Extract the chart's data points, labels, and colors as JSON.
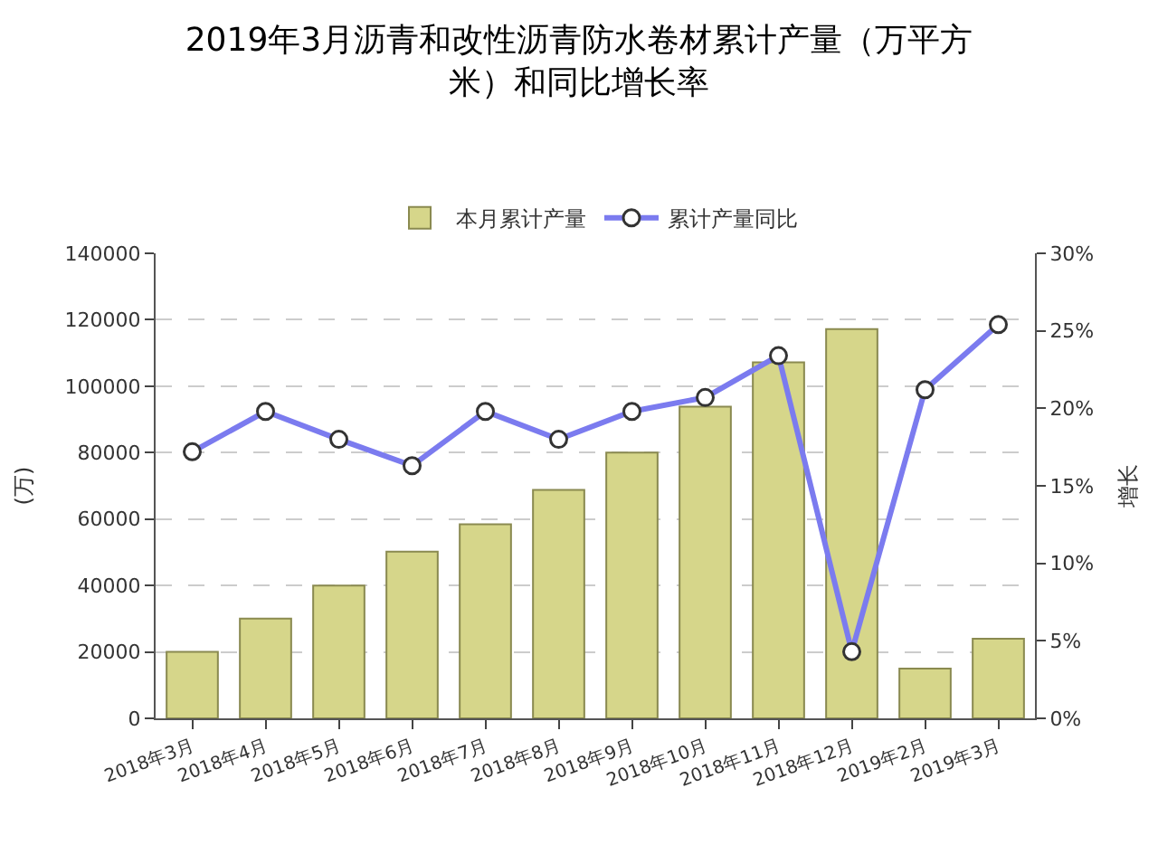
{
  "chart_data": {
    "type": "bar",
    "title": "2019年3月沥青和改性沥青防水卷材累计产量（万平方米）和同比增长率",
    "categories": [
      "2018年3月",
      "2018年4月",
      "2018年5月",
      "2018年6月",
      "2018年7月",
      "2018年8月",
      "2018年9月",
      "2018年10月",
      "2018年11月",
      "2018年12月",
      "2019年2月",
      "2019年3月"
    ],
    "series": [
      {
        "name": "本月累计产量",
        "color": "#d6d68a",
        "values": [
          20000,
          30000,
          40000,
          50200,
          58400,
          68800,
          80000,
          93800,
          107200,
          117200,
          15000,
          24000
        ]
      },
      {
        "name": "累计产量同比",
        "type": "line",
        "axis": "y2",
        "color": "#7b7bef",
        "values": [
          17.2,
          19.8,
          18.0,
          16.3,
          19.8,
          18.0,
          19.8,
          20.7,
          23.4,
          4.3,
          21.2,
          25.4
        ]
      }
    ],
    "ylabel": "(万)",
    "y2label": "增长",
    "ylim": [
      0,
      140000
    ],
    "yticks": [
      0,
      20000,
      40000,
      60000,
      80000,
      100000,
      120000,
      140000
    ],
    "y2lim": [
      0,
      30
    ],
    "y2ticks": [
      {
        "value": 0,
        "label": "0%"
      },
      {
        "value": 5,
        "label": "5%"
      },
      {
        "value": 10,
        "label": "10%"
      },
      {
        "value": 15,
        "label": "15%"
      },
      {
        "value": 20,
        "label": "20%"
      },
      {
        "value": 25,
        "label": "25%"
      },
      {
        "value": 30,
        "label": "30%"
      }
    ],
    "grid": "y",
    "legend": "top",
    "marker": "circle"
  }
}
